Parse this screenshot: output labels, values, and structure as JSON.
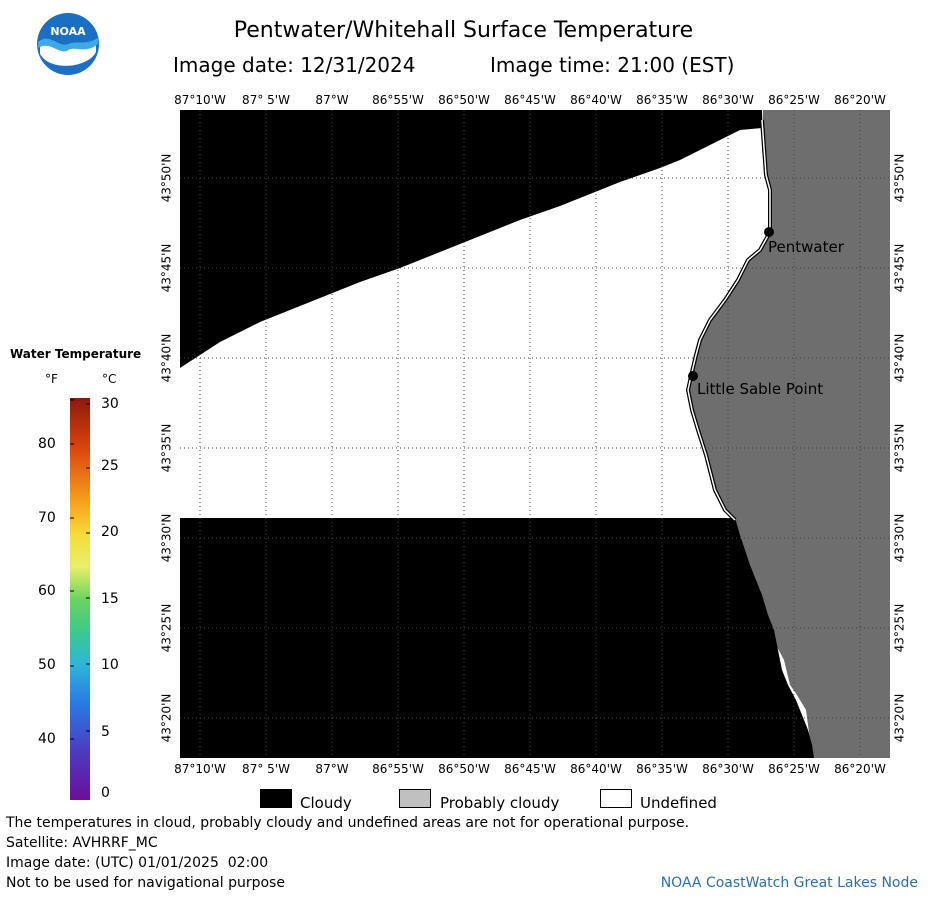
{
  "title": "Pentwater/Whitehall Surface Temperature",
  "image_date": "Image date: 12/31/2024",
  "image_time": "Image time: 21:00 (EST)",
  "logo_text": "NOAA",
  "lon_ticks": [
    "87°10'W",
    "87° 5'W",
    "87°W",
    "86°55'W",
    "86°50'W",
    "86°45'W",
    "86°40'W",
    "86°35'W",
    "86°30'W",
    "86°25'W",
    "86°20'W"
  ],
  "lat_ticks": [
    "43°50'N",
    "43°45'N",
    "43°40'N",
    "43°35'N",
    "43°30'N",
    "43°25'N",
    "43°20'N"
  ],
  "places": {
    "pentwater": "Pentwater",
    "little_sable": "Little Sable Point"
  },
  "colorbar": {
    "title": "Water Temperature",
    "unit_f": "°F",
    "unit_c": "°C",
    "f_ticks": [
      "80",
      "70",
      "60",
      "50",
      "40"
    ],
    "c_ticks": [
      "30",
      "25",
      "20",
      "15",
      "10",
      "5",
      "0"
    ]
  },
  "key": {
    "cloudy": "Cloudy",
    "probably_cloudy": "Probably cloudy",
    "undefined": "Undefined"
  },
  "footer": {
    "disclaimer": "The temperatures in cloud, probably cloudy and undefined areas are not for operational purpose.",
    "satellite": "Satellite: AVHRRF_MC",
    "utc_date": "Image date: (UTC) 01/01/2025  02:00",
    "nav_warning": "Not to be used for navigational purpose",
    "credit": "NOAA CoastWatch Great Lakes Node"
  },
  "colors": {
    "cloud": "#000000",
    "land": "#6e6e6e",
    "undefined": "#ffffff",
    "credit_text": "#2a6fb0",
    "logo_blue": "#1a8ad4"
  }
}
